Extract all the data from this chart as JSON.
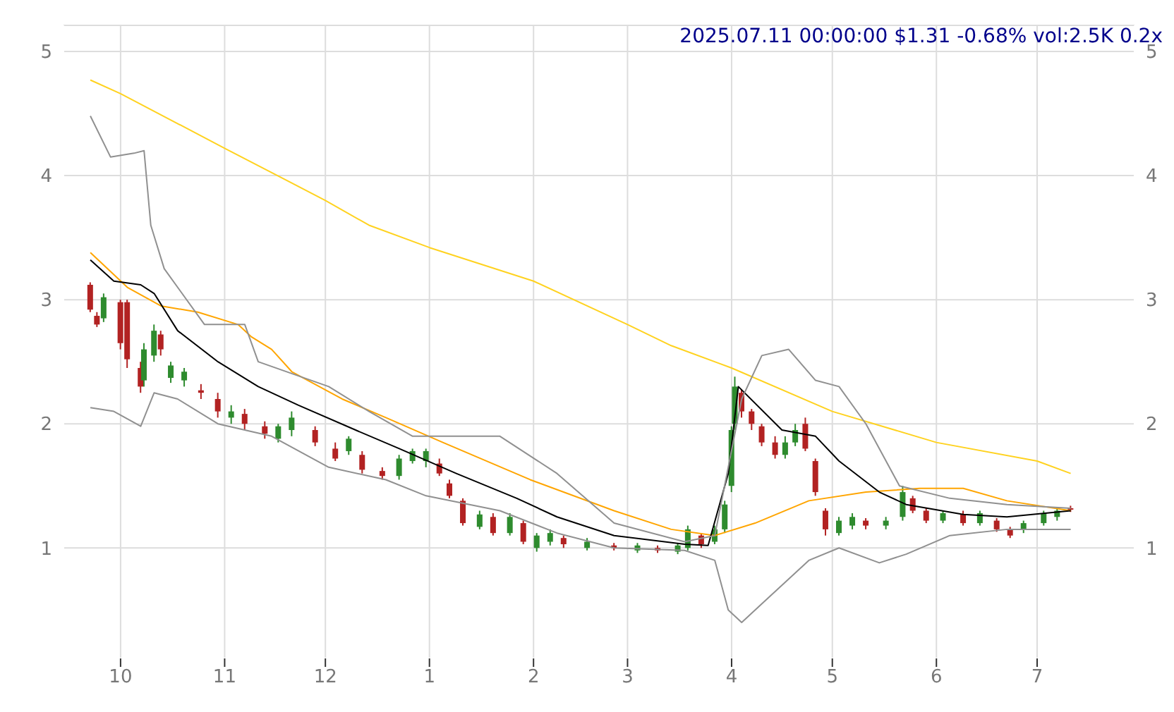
{
  "chart_data": {
    "type": "candlestick",
    "title": "2025.07.11 00:00:00 $1.31 -0.68% vol:2.5K 0.2x",
    "x": [
      "2024-09-22",
      "2024-09-24",
      "2024-09-26",
      "2024-10-01",
      "2024-10-03",
      "2024-10-07",
      "2024-10-08",
      "2024-10-11",
      "2024-10-13",
      "2024-10-16",
      "2024-10-20",
      "2024-10-25",
      "2024-10-30",
      "2024-11-03",
      "2024-11-07",
      "2024-11-13",
      "2024-11-17",
      "2024-11-21",
      "2024-11-28",
      "2024-12-04",
      "2024-12-08",
      "2024-12-12",
      "2024-12-18",
      "2024-12-23",
      "2024-12-27",
      "2024-12-31",
      "2025-01-04",
      "2025-01-07",
      "2025-01-11",
      "2025-01-16",
      "2025-01-20",
      "2025-01-25",
      "2025-01-29",
      "2025-02-02",
      "2025-02-06",
      "2025-02-10",
      "2025-02-17",
      "2025-02-25",
      "2025-03-04",
      "2025-03-10",
      "2025-03-16",
      "2025-03-19",
      "2025-03-23",
      "2025-03-27",
      "2025-03-30",
      "2025-04-01",
      "2025-04-02",
      "2025-04-04",
      "2025-04-07",
      "2025-04-10",
      "2025-04-14",
      "2025-04-17",
      "2025-04-20",
      "2025-04-23",
      "2025-04-26",
      "2025-04-29",
      "2025-05-03",
      "2025-05-07",
      "2025-05-11",
      "2025-05-17",
      "2025-05-22",
      "2025-05-25",
      "2025-05-29",
      "2025-06-03",
      "2025-06-09",
      "2025-06-14",
      "2025-06-19",
      "2025-06-23",
      "2025-06-27",
      "2025-07-03",
      "2025-07-07",
      "2025-07-11"
    ],
    "ohlc": [
      [
        3.12,
        3.14,
        2.9,
        2.92
      ],
      [
        2.87,
        2.9,
        2.78,
        2.8
      ],
      [
        2.85,
        3.05,
        2.82,
        3.02
      ],
      [
        2.98,
        3.0,
        2.6,
        2.65
      ],
      [
        2.98,
        3.0,
        2.45,
        2.52
      ],
      [
        2.45,
        2.5,
        2.25,
        2.3
      ],
      [
        2.35,
        2.65,
        2.3,
        2.6
      ],
      [
        2.55,
        2.8,
        2.5,
        2.75
      ],
      [
        2.72,
        2.75,
        2.55,
        2.6
      ],
      [
        2.37,
        2.5,
        2.33,
        2.47
      ],
      [
        2.35,
        2.45,
        2.3,
        2.42
      ],
      [
        2.27,
        2.32,
        2.2,
        2.25
      ],
      [
        2.2,
        2.25,
        2.05,
        2.1
      ],
      [
        2.05,
        2.15,
        2.0,
        2.1
      ],
      [
        2.08,
        2.12,
        1.95,
        2.0
      ],
      [
        1.98,
        2.02,
        1.88,
        1.92
      ],
      [
        1.88,
        2.0,
        1.85,
        1.98
      ],
      [
        1.95,
        2.1,
        1.9,
        2.05
      ],
      [
        1.95,
        1.98,
        1.82,
        1.85
      ],
      [
        1.8,
        1.85,
        1.7,
        1.72
      ],
      [
        1.78,
        1.9,
        1.75,
        1.88
      ],
      [
        1.75,
        1.78,
        1.6,
        1.63
      ],
      [
        1.62,
        1.65,
        1.55,
        1.58
      ],
      [
        1.58,
        1.75,
        1.55,
        1.72
      ],
      [
        1.7,
        1.8,
        1.68,
        1.78
      ],
      [
        1.7,
        1.8,
        1.65,
        1.78
      ],
      [
        1.68,
        1.72,
        1.58,
        1.6
      ],
      [
        1.52,
        1.55,
        1.4,
        1.42
      ],
      [
        1.38,
        1.4,
        1.18,
        1.2
      ],
      [
        1.17,
        1.3,
        1.15,
        1.27
      ],
      [
        1.25,
        1.28,
        1.1,
        1.12
      ],
      [
        1.12,
        1.28,
        1.1,
        1.25
      ],
      [
        1.2,
        1.22,
        1.03,
        1.05
      ],
      [
        1.0,
        1.12,
        0.97,
        1.1
      ],
      [
        1.05,
        1.15,
        1.02,
        1.12
      ],
      [
        1.08,
        1.1,
        1.0,
        1.03
      ],
      [
        1.0,
        1.08,
        0.98,
        1.05
      ],
      [
        1.02,
        1.04,
        0.98,
        1.0
      ],
      [
        0.98,
        1.04,
        0.96,
        1.02
      ],
      [
        1.0,
        1.02,
        0.96,
        0.98
      ],
      [
        0.97,
        1.04,
        0.95,
        1.02
      ],
      [
        1.0,
        1.18,
        0.98,
        1.15
      ],
      [
        1.1,
        1.12,
        1.0,
        1.03
      ],
      [
        1.05,
        1.18,
        1.03,
        1.15
      ],
      [
        1.15,
        1.38,
        1.12,
        1.35
      ],
      [
        1.5,
        1.98,
        1.45,
        1.95
      ],
      [
        2.0,
        2.38,
        1.95,
        2.3
      ],
      [
        2.25,
        2.28,
        2.05,
        2.1
      ],
      [
        2.1,
        2.12,
        1.95,
        2.0
      ],
      [
        1.98,
        2.0,
        1.82,
        1.85
      ],
      [
        1.85,
        1.9,
        1.72,
        1.75
      ],
      [
        1.75,
        1.9,
        1.72,
        1.85
      ],
      [
        1.85,
        2.0,
        1.82,
        1.95
      ],
      [
        2.0,
        2.05,
        1.78,
        1.8
      ],
      [
        1.7,
        1.72,
        1.42,
        1.45
      ],
      [
        1.3,
        1.32,
        1.1,
        1.15
      ],
      [
        1.12,
        1.25,
        1.1,
        1.22
      ],
      [
        1.18,
        1.28,
        1.15,
        1.25
      ],
      [
        1.22,
        1.24,
        1.15,
        1.18
      ],
      [
        1.18,
        1.25,
        1.15,
        1.22
      ],
      [
        1.25,
        1.5,
        1.22,
        1.45
      ],
      [
        1.4,
        1.42,
        1.28,
        1.3
      ],
      [
        1.3,
        1.32,
        1.2,
        1.22
      ],
      [
        1.22,
        1.3,
        1.2,
        1.28
      ],
      [
        1.27,
        1.3,
        1.18,
        1.2
      ],
      [
        1.2,
        1.3,
        1.18,
        1.28
      ],
      [
        1.22,
        1.24,
        1.13,
        1.15
      ],
      [
        1.15,
        1.17,
        1.08,
        1.1
      ],
      [
        1.15,
        1.22,
        1.12,
        1.2
      ],
      [
        1.2,
        1.3,
        1.18,
        1.28
      ],
      [
        1.25,
        1.33,
        1.22,
        1.3
      ],
      [
        1.32,
        1.34,
        1.29,
        1.31
      ]
    ],
    "colors": [
      "#b22222",
      "#b22222",
      "#2e8b2e",
      "#b22222",
      "#b22222",
      "#b22222",
      "#2e8b2e",
      "#2e8b2e",
      "#b22222",
      "#2e8b2e",
      "#2e8b2e",
      "#b22222",
      "#b22222",
      "#2e8b2e",
      "#b22222",
      "#b22222",
      "#2e8b2e",
      "#2e8b2e",
      "#b22222",
      "#b22222",
      "#2e8b2e",
      "#b22222",
      "#b22222",
      "#2e8b2e",
      "#2e8b2e",
      "#2e8b2e",
      "#b22222",
      "#b22222",
      "#b22222",
      "#2e8b2e",
      "#b22222",
      "#2e8b2e",
      "#b22222",
      "#2e8b2e",
      "#2e8b2e",
      "#b22222",
      "#2e8b2e",
      "#b22222",
      "#2e8b2e",
      "#b22222",
      "#2e8b2e",
      "#2e8b2e",
      "#b22222",
      "#2e8b2e",
      "#2e8b2e",
      "#2e8b2e",
      "#2e8b2e",
      "#b22222",
      "#b22222",
      "#b22222",
      "#b22222",
      "#2e8b2e",
      "#2e8b2e",
      "#b22222",
      "#b22222",
      "#b22222",
      "#2e8b2e",
      "#2e8b2e",
      "#b22222",
      "#2e8b2e",
      "#2e8b2e",
      "#b22222",
      "#b22222",
      "#2e8b2e",
      "#b22222",
      "#2e8b2e",
      "#b22222",
      "#b22222",
      "#2e8b2e",
      "#2e8b2e",
      "#2e8b2e",
      "#b22222"
    ],
    "series": [
      {
        "type": "line",
        "color": "#ffd21f",
        "x": [
          "2024-09-22",
          "2024-10-01",
          "2024-11-01",
          "2024-12-01",
          "2024-12-14",
          "2025-01-01",
          "2025-02-01",
          "2025-03-01",
          "2025-03-14",
          "2025-04-01",
          "2025-05-01",
          "2025-06-01",
          "2025-07-01",
          "2025-07-11"
        ],
        "values": [
          4.77,
          4.66,
          4.22,
          3.8,
          3.6,
          3.42,
          3.15,
          2.8,
          2.63,
          2.45,
          2.1,
          1.85,
          1.7,
          1.6
        ]
      },
      {
        "type": "line",
        "color": "#ffa500",
        "x": [
          "2024-09-22",
          "2024-10-03",
          "2024-10-13",
          "2024-10-24",
          "2024-11-05",
          "2024-11-09",
          "2024-11-15",
          "2024-11-21",
          "2024-12-06",
          "2024-12-19",
          "2025-01-05",
          "2025-01-31",
          "2025-02-25",
          "2025-03-14",
          "2025-03-27",
          "2025-04-08",
          "2025-04-24",
          "2025-05-11",
          "2025-05-27",
          "2025-06-09",
          "2025-06-22",
          "2025-07-11"
        ],
        "values": [
          3.38,
          3.1,
          2.95,
          2.9,
          2.8,
          2.7,
          2.6,
          2.42,
          2.2,
          2.05,
          1.85,
          1.55,
          1.3,
          1.15,
          1.1,
          1.2,
          1.38,
          1.45,
          1.48,
          1.48,
          1.38,
          1.3
        ]
      },
      {
        "type": "line",
        "color": "#000000",
        "x": [
          "2024-09-22",
          "2024-09-29",
          "2024-10-07",
          "2024-10-11",
          "2024-10-18",
          "2024-10-30",
          "2024-11-11",
          "2024-11-23",
          "2024-12-10",
          "2024-12-23",
          "2025-01-09",
          "2025-01-27",
          "2025-02-08",
          "2025-02-25",
          "2025-03-18",
          "2025-03-25",
          "2025-03-31",
          "2025-04-03",
          "2025-04-16",
          "2025-04-26",
          "2025-05-03",
          "2025-05-15",
          "2025-05-23",
          "2025-06-09",
          "2025-06-22",
          "2025-07-11"
        ],
        "values": [
          3.32,
          3.15,
          3.12,
          3.05,
          2.75,
          2.5,
          2.3,
          2.15,
          1.95,
          1.8,
          1.6,
          1.4,
          1.25,
          1.1,
          1.03,
          1.02,
          1.6,
          2.3,
          1.95,
          1.9,
          1.7,
          1.45,
          1.35,
          1.27,
          1.25,
          1.3
        ]
      },
      {
        "type": "line",
        "color": "#909090",
        "x": [
          "2024-09-22",
          "2024-09-28",
          "2024-10-05",
          "2024-10-08",
          "2024-10-10",
          "2024-10-14",
          "2024-10-26",
          "2024-11-07",
          "2024-11-11",
          "2024-12-02",
          "2024-12-14",
          "2024-12-27",
          "2025-01-09",
          "2025-01-22",
          "2025-02-08",
          "2025-02-25",
          "2025-03-18",
          "2025-03-27",
          "2025-04-04",
          "2025-04-10",
          "2025-04-18",
          "2025-04-26",
          "2025-05-03",
          "2025-05-11",
          "2025-05-21",
          "2025-06-05",
          "2025-06-22",
          "2025-07-11"
        ],
        "values": [
          4.48,
          4.15,
          4.18,
          4.2,
          3.6,
          3.25,
          2.8,
          2.8,
          2.5,
          2.3,
          2.1,
          1.9,
          1.9,
          1.9,
          1.6,
          1.2,
          1.05,
          1.1,
          2.2,
          2.55,
          2.6,
          2.35,
          2.3,
          2.0,
          1.5,
          1.4,
          1.35,
          1.32
        ]
      },
      {
        "type": "line",
        "color": "#909090",
        "x": [
          "2024-09-22",
          "2024-09-29",
          "2024-10-07",
          "2024-10-11",
          "2024-10-18",
          "2024-10-30",
          "2024-11-15",
          "2024-12-02",
          "2024-12-19",
          "2024-12-31",
          "2025-01-22",
          "2025-02-08",
          "2025-02-25",
          "2025-03-18",
          "2025-03-27",
          "2025-03-31",
          "2025-04-04",
          "2025-04-10",
          "2025-04-24",
          "2025-05-03",
          "2025-05-15",
          "2025-05-23",
          "2025-06-05",
          "2025-06-22",
          "2025-07-11"
        ],
        "values": [
          2.13,
          2.1,
          1.98,
          2.25,
          2.2,
          2.0,
          1.9,
          1.65,
          1.55,
          1.42,
          1.3,
          1.12,
          1.0,
          0.98,
          0.9,
          0.5,
          0.4,
          0.55,
          0.9,
          1.0,
          0.88,
          0.95,
          1.1,
          1.15,
          1.15
        ]
      }
    ],
    "xlim": [
      "2024-09-14",
      "2025-07-30"
    ],
    "xticks": [
      {
        "value": "2024-10-01",
        "label": "10"
      },
      {
        "value": "2024-11-01",
        "label": "11"
      },
      {
        "value": "2024-12-01",
        "label": "12"
      },
      {
        "value": "2025-01-01",
        "label": "1"
      },
      {
        "value": "2025-02-01",
        "label": "2"
      },
      {
        "value": "2025-03-01",
        "label": "3"
      },
      {
        "value": "2025-04-01",
        "label": "4"
      },
      {
        "value": "2025-05-01",
        "label": "5"
      },
      {
        "value": "2025-06-01",
        "label": "6"
      },
      {
        "value": "2025-07-01",
        "label": "7"
      }
    ],
    "ylim": [
      0.11,
      5.21
    ],
    "yticks": [
      1,
      2,
      3,
      4,
      5
    ],
    "y2lim": [
      0.11,
      5.21
    ],
    "y2ticks": [
      1,
      2,
      3,
      4,
      5
    ],
    "grid": true,
    "legend": false
  }
}
